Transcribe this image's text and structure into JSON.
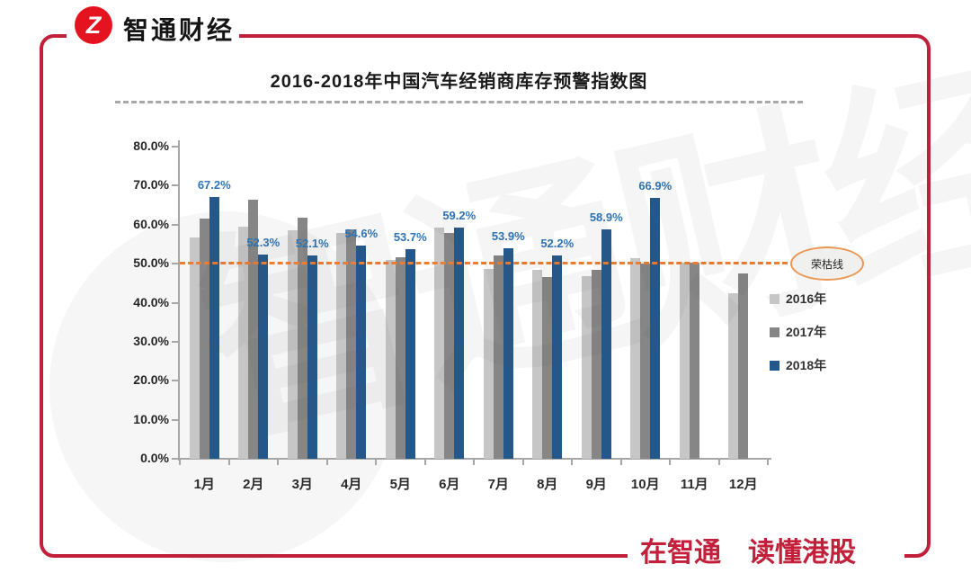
{
  "brand": {
    "logo_glyph": "Z",
    "logo_text": "智通财经",
    "slogan": "在智通　读懂港股",
    "logo_color": "#e5131f",
    "frame_color": "#c2203a"
  },
  "chart_data": {
    "type": "bar",
    "title": "2016-2018年中国汽车经销商库存预警指数图",
    "categories": [
      "1月",
      "2月",
      "3月",
      "4月",
      "5月",
      "6月",
      "7月",
      "8月",
      "9月",
      "10月",
      "11月",
      "12月"
    ],
    "series": [
      {
        "name": "2016年",
        "color": "#c6c6c6",
        "values": [
          56.7,
          59.4,
          58.6,
          57.8,
          50.9,
          59.3,
          48.6,
          48.4,
          46.8,
          51.5,
          50.3,
          42.5
        ]
      },
      {
        "name": "2017年",
        "color": "#868686",
        "values": [
          61.5,
          66.5,
          61.9,
          58.8,
          51.6,
          57.8,
          52.2,
          46.6,
          48.4,
          50.1,
          50.2,
          47.5
        ]
      },
      {
        "name": "2018年",
        "color": "#25588a",
        "values": [
          67.2,
          52.3,
          52.1,
          54.6,
          53.7,
          59.2,
          53.9,
          52.2,
          58.9,
          66.9,
          null,
          null
        ],
        "data_labels": [
          "67.2%",
          "52.3%",
          "52.1%",
          "54.6%",
          "53.7%",
          "59.2%",
          "53.9%",
          "52.2%",
          "58.9%",
          "66.9%",
          null,
          null
        ],
        "label_color": "#2e75b6"
      }
    ],
    "xlabel": "",
    "ylabel": "",
    "ylim": [
      0,
      80
    ],
    "yticks": {
      "values": [
        80,
        70,
        60,
        50,
        40,
        30,
        20,
        10,
        0
      ],
      "labels": [
        "80.0%",
        "70.0%",
        "60.0%",
        "50.0%",
        "40.0%",
        "30.0%",
        "20.0%",
        "10.0%",
        "0.0%"
      ]
    },
    "grid": false,
    "reference_line": {
      "value": 50,
      "label": "荣枯线",
      "color": "#ed7d31"
    },
    "legend_position": "right",
    "legend_entries": [
      "2016年",
      "2017年",
      "2018年"
    ]
  },
  "watermark": {
    "text": "智通财经"
  }
}
